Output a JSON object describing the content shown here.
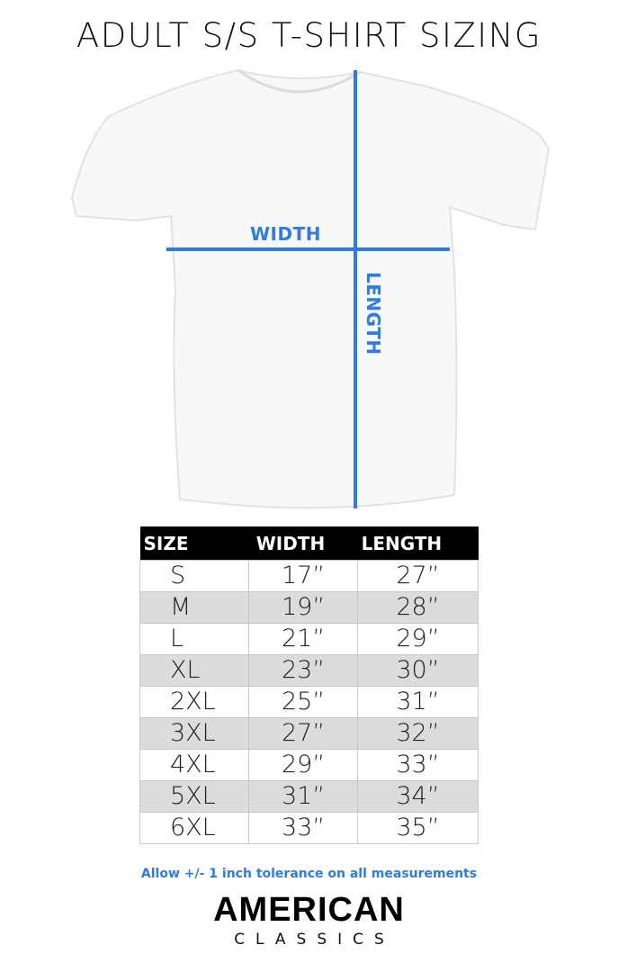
{
  "title": "ADULT S/S T-SHIRT SIZING",
  "diagram": {
    "width_label": "WIDTH",
    "length_label": "LENGTH",
    "accent": "#2f7be6"
  },
  "table": {
    "headers": [
      "SIZE",
      "WIDTH",
      "LENGTH"
    ],
    "rows": [
      [
        "S",
        "17”",
        "27”"
      ],
      [
        "M",
        "19”",
        "28”"
      ],
      [
        "L",
        "21”",
        "29”"
      ],
      [
        "XL",
        "23”",
        "30”"
      ],
      [
        "2XL",
        "25”",
        "31”"
      ],
      [
        "3XL",
        "27”",
        "32”"
      ],
      [
        "4XL",
        "29”",
        "33”"
      ],
      [
        "5XL",
        "31”",
        "34”"
      ],
      [
        "6XL",
        "33”",
        "35”"
      ]
    ]
  },
  "note": "Allow +/- 1 inch tolerance on all measurements",
  "brand": {
    "line1": "AMERICAN",
    "line2": "CLASSICS"
  }
}
